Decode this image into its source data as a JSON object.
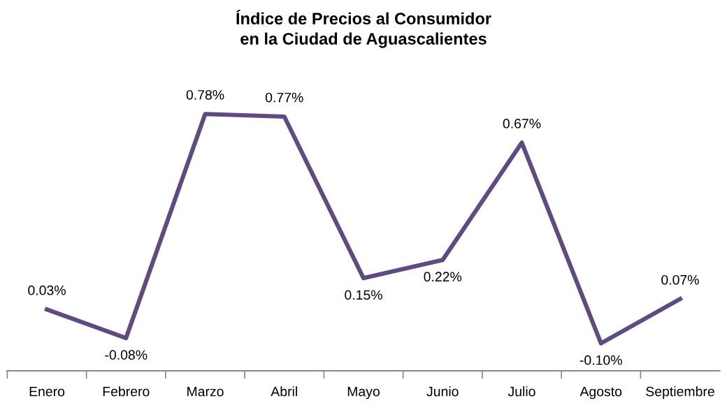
{
  "chart_data": {
    "type": "line",
    "title": "Índice de Precios al Consumidor\nen la Ciudad de Aguascalientes",
    "categories": [
      "Enero",
      "Febrero",
      "Marzo",
      "Abril",
      "Mayo",
      "Junio",
      "Julio",
      "Agosto",
      "Septiembre"
    ],
    "series": [
      {
        "color": "#5e4b82",
        "values": [
          0.03,
          -0.08,
          0.78,
          0.77,
          0.15,
          0.22,
          0.67,
          -0.1,
          0.07
        ],
        "value_labels": [
          "0.03%",
          "-0.08%",
          "0.78%",
          "0.77%",
          "0.15%",
          "0.22%",
          "0.67%",
          "-0.10%",
          "0.07%"
        ]
      }
    ],
    "grid": false,
    "legend": false,
    "marker": "none",
    "line_style": "solid"
  }
}
